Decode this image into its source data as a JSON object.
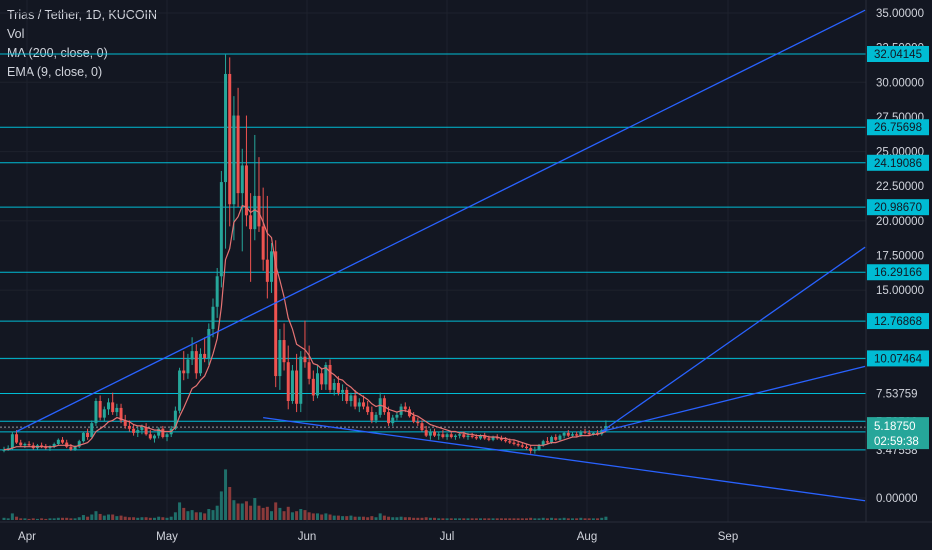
{
  "legend": {
    "symbol": "Trias / Tether, 1D, KUCOIN",
    "vol": "Vol",
    "ma": "MA (200, close, 0)",
    "ema": "EMA (9, close, 0)"
  },
  "colors": {
    "background": "#131722",
    "up": "#26a69a",
    "down": "#ef5350",
    "hline": "#00bcd4",
    "trendline": "#2962ff",
    "ema": "#e57373"
  },
  "chart_data": {
    "type": "candlestick",
    "ylim": [
      -0.5,
      35.6
    ],
    "y_ticks": [
      "35.00000",
      "32.50000",
      "30.00000",
      "27.50000",
      "25.00000",
      "22.50000",
      "20.00000",
      "17.50000",
      "15.00000",
      "7.53759",
      "5.53500",
      "4.77310",
      "3.47558",
      "0.00000"
    ],
    "x_ticks": [
      "Apr",
      "May",
      "Jun",
      "Jul",
      "Aug",
      "Sep"
    ],
    "horizontal_levels": [
      "32.04145",
      "26.75698",
      "24.19086",
      "20.98670",
      "16.29166",
      "12.76868",
      "10.07464"
    ],
    "level_values": [
      32.04145,
      26.75698,
      24.19086,
      20.9867,
      16.29166,
      12.76868,
      10.07464,
      7.53759,
      5.535,
      4.7731,
      3.47558
    ],
    "price_tag": {
      "price": "5.18750",
      "countdown": "02:59:38",
      "value": 5.1875
    },
    "candles_ohlc": [
      [
        3.4,
        3.7,
        3.3,
        3.5
      ],
      [
        3.5,
        3.8,
        3.4,
        3.6
      ],
      [
        3.6,
        4.8,
        3.5,
        4.6
      ],
      [
        4.6,
        4.9,
        3.9,
        4.0
      ],
      [
        4.0,
        4.2,
        3.7,
        3.8
      ],
      [
        3.8,
        4.0,
        3.6,
        3.9
      ],
      [
        3.9,
        4.1,
        3.7,
        3.8
      ],
      [
        3.8,
        4.0,
        3.5,
        3.6
      ],
      [
        3.6,
        3.9,
        3.5,
        3.8
      ],
      [
        3.8,
        4.0,
        3.6,
        3.7
      ],
      [
        3.7,
        3.9,
        3.5,
        3.6
      ],
      [
        3.6,
        3.8,
        3.4,
        3.7
      ],
      [
        3.7,
        4.0,
        3.6,
        3.9
      ],
      [
        3.9,
        4.3,
        3.8,
        4.2
      ],
      [
        4.2,
        4.4,
        3.9,
        4.0
      ],
      [
        4.0,
        4.2,
        3.6,
        3.7
      ],
      [
        3.7,
        3.9,
        3.4,
        3.5
      ],
      [
        3.5,
        3.8,
        3.4,
        3.7
      ],
      [
        3.7,
        4.2,
        3.6,
        4.1
      ],
      [
        4.1,
        4.8,
        4.0,
        4.7
      ],
      [
        4.7,
        5.0,
        4.2,
        4.4
      ],
      [
        4.4,
        5.6,
        4.3,
        5.4
      ],
      [
        5.4,
        7.2,
        5.2,
        7.0
      ],
      [
        7.0,
        7.4,
        5.6,
        5.8
      ],
      [
        5.8,
        6.6,
        5.5,
        6.4
      ],
      [
        6.4,
        7.2,
        6.0,
        6.9
      ],
      [
        6.9,
        7.6,
        6.0,
        6.2
      ],
      [
        6.2,
        6.8,
        5.9,
        6.5
      ],
      [
        6.5,
        6.8,
        5.4,
        5.6
      ],
      [
        5.6,
        6.0,
        5.0,
        5.2
      ],
      [
        5.2,
        5.6,
        4.8,
        5.0
      ],
      [
        5.0,
        5.3,
        4.5,
        4.7
      ],
      [
        4.7,
        5.1,
        4.4,
        4.9
      ],
      [
        4.9,
        5.3,
        4.6,
        5.1
      ],
      [
        5.1,
        5.4,
        4.5,
        4.6
      ],
      [
        4.6,
        4.9,
        4.2,
        4.3
      ],
      [
        4.3,
        4.6,
        4.0,
        4.5
      ],
      [
        4.5,
        5.1,
        4.3,
        5.0
      ],
      [
        5.0,
        5.2,
        4.3,
        4.4
      ],
      [
        4.4,
        4.7,
        4.1,
        4.6
      ],
      [
        4.6,
        5.2,
        4.4,
        5.0
      ],
      [
        5.0,
        6.6,
        4.9,
        6.3
      ],
      [
        6.3,
        9.4,
        6.1,
        9.2
      ],
      [
        9.2,
        10.6,
        8.5,
        9.0
      ],
      [
        9.0,
        10.4,
        8.6,
        10.0
      ],
      [
        10.0,
        11.6,
        9.6,
        10.6
      ],
      [
        10.6,
        11.1,
        8.6,
        9.0
      ],
      [
        9.0,
        10.8,
        8.8,
        10.4
      ],
      [
        10.4,
        11.6,
        9.8,
        10.1
      ],
      [
        10.1,
        12.6,
        9.6,
        12.2
      ],
      [
        12.2,
        14.4,
        11.6,
        13.8
      ],
      [
        13.8,
        16.6,
        13.0,
        16.0
      ],
      [
        16.0,
        23.6,
        15.2,
        22.8
      ],
      [
        22.8,
        32.0,
        18.0,
        30.6
      ],
      [
        30.6,
        31.8,
        19.6,
        21.2
      ],
      [
        21.2,
        29.0,
        18.6,
        27.6
      ],
      [
        27.6,
        29.6,
        21.0,
        22.0
      ],
      [
        22.0,
        25.2,
        17.8,
        24.0
      ],
      [
        24.0,
        27.6,
        19.6,
        20.4
      ],
      [
        20.4,
        22.0,
        15.6,
        19.4
      ],
      [
        19.4,
        26.2,
        18.6,
        21.8
      ],
      [
        21.8,
        24.6,
        19.2,
        19.6
      ],
      [
        19.6,
        22.4,
        16.4,
        17.2
      ],
      [
        17.2,
        21.8,
        14.4,
        15.6
      ],
      [
        15.6,
        18.4,
        14.8,
        17.8
      ],
      [
        17.8,
        18.6,
        8.0,
        8.8
      ],
      [
        8.8,
        12.2,
        7.8,
        11.4
      ],
      [
        11.4,
        12.6,
        9.2,
        9.8
      ],
      [
        9.8,
        11.0,
        6.4,
        7.0
      ],
      [
        7.0,
        9.6,
        6.8,
        9.2
      ],
      [
        9.2,
        10.4,
        6.2,
        6.8
      ],
      [
        6.8,
        10.6,
        6.2,
        10.2
      ],
      [
        10.2,
        12.8,
        9.4,
        9.8
      ],
      [
        9.8,
        11.0,
        8.2,
        8.6
      ],
      [
        8.6,
        9.2,
        7.0,
        7.4
      ],
      [
        7.4,
        9.6,
        7.2,
        9.0
      ],
      [
        9.0,
        9.4,
        7.8,
        8.2
      ],
      [
        8.2,
        9.8,
        7.8,
        9.6
      ],
      [
        9.6,
        10.0,
        7.6,
        7.8
      ],
      [
        7.8,
        8.6,
        7.4,
        8.3
      ],
      [
        8.3,
        8.8,
        7.4,
        7.6
      ],
      [
        7.6,
        8.2,
        7.0,
        7.8
      ],
      [
        7.8,
        8.0,
        6.8,
        7.0
      ],
      [
        7.0,
        7.6,
        6.6,
        7.4
      ],
      [
        7.4,
        7.8,
        6.4,
        6.6
      ],
      [
        6.6,
        7.2,
        6.2,
        6.9
      ],
      [
        6.9,
        7.4,
        6.4,
        6.6
      ],
      [
        6.6,
        7.0,
        6.0,
        6.2
      ],
      [
        6.2,
        6.6,
        5.4,
        5.6
      ],
      [
        5.6,
        6.2,
        5.4,
        6.0
      ],
      [
        6.0,
        7.6,
        5.8,
        7.2
      ],
      [
        7.2,
        7.4,
        6.0,
        6.2
      ],
      [
        6.2,
        6.6,
        5.2,
        5.4
      ],
      [
        5.4,
        6.0,
        5.2,
        5.8
      ],
      [
        5.8,
        6.2,
        5.6,
        6.0
      ],
      [
        6.0,
        6.8,
        5.8,
        6.6
      ],
      [
        6.6,
        6.9,
        6.2,
        6.4
      ],
      [
        6.4,
        6.6,
        5.8,
        5.9
      ],
      [
        5.9,
        6.2,
        5.4,
        5.5
      ],
      [
        5.5,
        5.8,
        5.2,
        5.4
      ],
      [
        5.4,
        5.6,
        4.8,
        4.9
      ],
      [
        4.9,
        5.2,
        4.4,
        4.5
      ],
      [
        4.5,
        5.0,
        4.2,
        4.8
      ],
      [
        4.8,
        5.0,
        4.4,
        4.5
      ],
      [
        4.5,
        4.8,
        4.2,
        4.6
      ],
      [
        4.6,
        4.9,
        4.3,
        4.4
      ],
      [
        4.4,
        4.7,
        4.2,
        4.6
      ],
      [
        4.6,
        4.8,
        4.3,
        4.4
      ],
      [
        4.4,
        4.6,
        4.2,
        4.5
      ],
      [
        4.5,
        4.8,
        4.3,
        4.6
      ],
      [
        4.6,
        4.8,
        4.3,
        4.4
      ],
      [
        4.4,
        4.7,
        4.2,
        4.5
      ],
      [
        4.5,
        4.7,
        4.3,
        4.4
      ],
      [
        4.4,
        4.6,
        4.2,
        4.3
      ],
      [
        4.3,
        4.6,
        4.2,
        4.5
      ],
      [
        4.5,
        4.7,
        4.2,
        4.3
      ],
      [
        4.3,
        4.5,
        4.1,
        4.2
      ],
      [
        4.2,
        4.5,
        4.1,
        4.4
      ],
      [
        4.4,
        4.6,
        4.2,
        4.3
      ],
      [
        4.3,
        4.5,
        4.1,
        4.2
      ],
      [
        4.2,
        4.4,
        4.0,
        4.1
      ],
      [
        4.1,
        4.3,
        3.9,
        4.0
      ],
      [
        4.0,
        4.2,
        3.8,
        3.9
      ],
      [
        3.9,
        4.1,
        3.7,
        3.8
      ],
      [
        3.8,
        4.0,
        3.6,
        3.7
      ],
      [
        3.7,
        3.9,
        3.5,
        3.6
      ],
      [
        3.6,
        3.8,
        3.2,
        3.4
      ],
      [
        3.4,
        3.7,
        3.2,
        3.5
      ],
      [
        3.5,
        3.9,
        3.4,
        3.8
      ],
      [
        3.8,
        4.2,
        3.7,
        4.1
      ],
      [
        4.1,
        4.4,
        3.9,
        4.0
      ],
      [
        4.0,
        4.5,
        3.9,
        4.4
      ],
      [
        4.4,
        4.6,
        4.1,
        4.2
      ],
      [
        4.2,
        4.6,
        4.1,
        4.5
      ],
      [
        4.5,
        4.8,
        4.3,
        4.7
      ],
      [
        4.7,
        4.9,
        4.4,
        4.5
      ],
      [
        4.5,
        4.8,
        4.4,
        4.6
      ],
      [
        4.6,
        4.8,
        4.4,
        4.5
      ],
      [
        4.5,
        4.9,
        4.4,
        4.8
      ],
      [
        4.8,
        5.0,
        4.6,
        4.7
      ],
      [
        4.7,
        4.9,
        4.5,
        4.6
      ],
      [
        4.6,
        4.8,
        4.5,
        4.7
      ],
      [
        4.7,
        4.9,
        4.5,
        4.6
      ],
      [
        4.6,
        5.0,
        4.5,
        4.9
      ],
      [
        4.9,
        5.6,
        4.8,
        5.2
      ]
    ],
    "volumes": [
      0.4,
      0.3,
      1.2,
      0.6,
      0.3,
      0.3,
      0.2,
      0.3,
      0.2,
      0.3,
      0.2,
      0.3,
      0.3,
      0.4,
      0.4,
      0.4,
      0.3,
      0.3,
      0.5,
      0.9,
      0.6,
      1.0,
      1.6,
      1.1,
      0.8,
      1.0,
      1.0,
      0.7,
      0.8,
      0.6,
      0.5,
      0.5,
      0.4,
      0.5,
      0.5,
      0.4,
      0.4,
      0.6,
      0.5,
      0.4,
      0.6,
      1.4,
      3.2,
      2.2,
      1.6,
      1.8,
      1.4,
      1.4,
      1.2,
      2.0,
      1.8,
      2.6,
      5.2,
      9.2,
      6.0,
      3.6,
      3.0,
      3.0,
      3.4,
      2.6,
      4.0,
      2.6,
      2.2,
      2.4,
      1.6,
      3.2,
      2.2,
      1.6,
      2.4,
      1.4,
      1.6,
      2.0,
      1.8,
      1.4,
      1.2,
      1.2,
      1.0,
      1.2,
      1.0,
      0.8,
      0.8,
      0.7,
      0.7,
      0.8,
      0.6,
      0.6,
      0.6,
      0.5,
      0.7,
      0.5,
      1.2,
      0.8,
      0.6,
      0.5,
      0.5,
      0.6,
      0.5,
      0.5,
      0.4,
      0.4,
      0.4,
      0.5,
      0.4,
      0.4,
      0.3,
      0.3,
      0.3,
      0.3,
      0.3,
      0.3,
      0.3,
      0.3,
      0.3,
      0.3,
      0.3,
      0.3,
      0.3,
      0.3,
      0.3,
      0.3,
      0.3,
      0.3,
      0.3,
      0.3,
      0.3,
      0.3,
      0.4,
      0.3,
      0.3,
      0.4,
      0.3,
      0.4,
      0.3,
      0.3,
      0.4,
      0.3,
      0.3,
      0.3,
      0.4,
      0.3,
      0.3,
      0.3,
      0.3,
      0.4,
      0.6
    ],
    "ema": [
      3.5,
      3.5,
      3.6,
      3.7,
      3.7,
      3.7,
      3.7,
      3.7,
      3.7,
      3.7,
      3.7,
      3.7,
      3.7,
      3.8,
      3.8,
      3.8,
      3.8,
      3.7,
      3.8,
      3.9,
      4.0,
      4.3,
      4.8,
      5.0,
      5.2,
      5.5,
      5.6,
      5.8,
      5.7,
      5.6,
      5.5,
      5.3,
      5.2,
      5.2,
      5.1,
      5.0,
      4.9,
      4.9,
      4.8,
      4.8,
      4.8,
      5.1,
      5.9,
      6.5,
      7.2,
      7.9,
      8.1,
      8.5,
      8.8,
      9.5,
      10.4,
      11.5,
      13.8,
      17.2,
      18.0,
      19.9,
      20.3,
      21.1,
      21.0,
      20.6,
      20.8,
      20.6,
      19.9,
      19.1,
      18.8,
      16.8,
      15.7,
      14.5,
      13.0,
      12.2,
      11.1,
      10.9,
      10.7,
      10.3,
      9.7,
      9.6,
      9.3,
      9.4,
      9.1,
      8.9,
      8.6,
      8.5,
      8.2,
      8.0,
      7.7,
      7.5,
      7.3,
      7.1,
      6.8,
      6.6,
      6.7,
      6.6,
      6.4,
      6.3,
      6.2,
      6.3,
      6.3,
      6.2,
      6.0,
      5.9,
      5.7,
      5.5,
      5.3,
      5.2,
      5.1,
      5.0,
      4.9,
      4.8,
      4.8,
      4.7,
      4.7,
      4.6,
      4.6,
      4.5,
      4.5,
      4.5,
      4.4,
      4.4,
      4.4,
      4.3,
      4.3,
      4.2,
      4.2,
      4.1,
      4.0,
      3.9,
      3.8,
      3.8,
      3.8,
      3.8,
      3.9,
      4.0,
      4.0,
      4.1,
      4.2,
      4.3,
      4.4,
      4.4,
      4.5,
      4.5,
      4.5,
      4.6,
      4.6,
      4.7,
      4.8
    ]
  }
}
